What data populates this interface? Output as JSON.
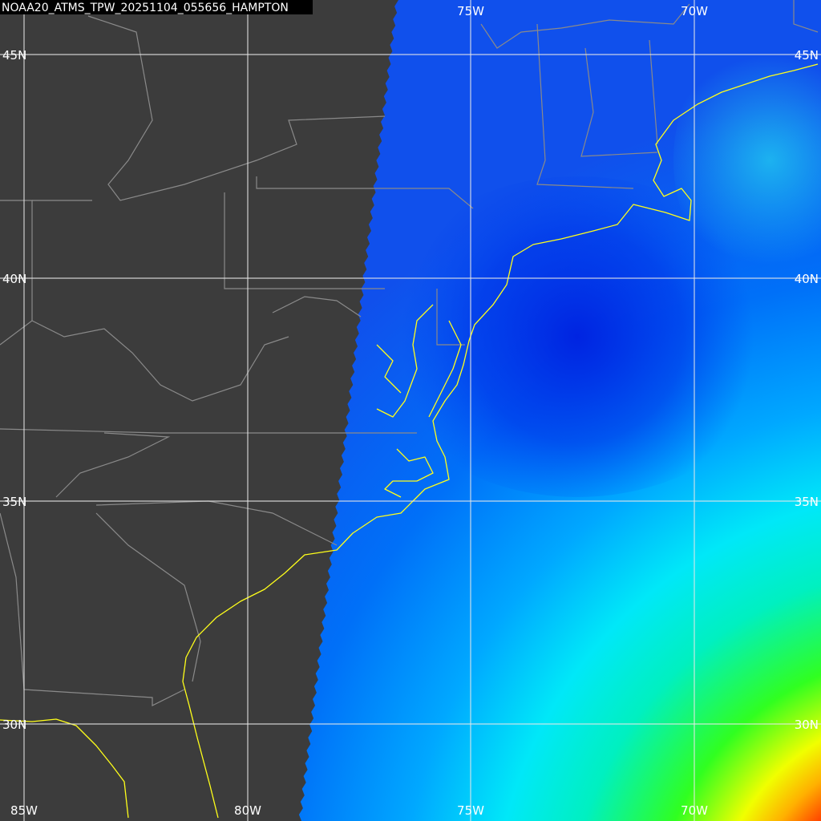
{
  "title": "NOAA20_ATMS_TPW_20251104_055656_HAMPTON",
  "grid_labels": {
    "top": [
      "75W",
      "70W"
    ],
    "bottom": [
      "85W",
      "80W",
      "75W",
      "70W"
    ],
    "left": [
      "45N",
      "40N",
      "35N",
      "30N"
    ],
    "right": [
      "45N",
      "40N",
      "35N",
      "30N"
    ]
  }
}
